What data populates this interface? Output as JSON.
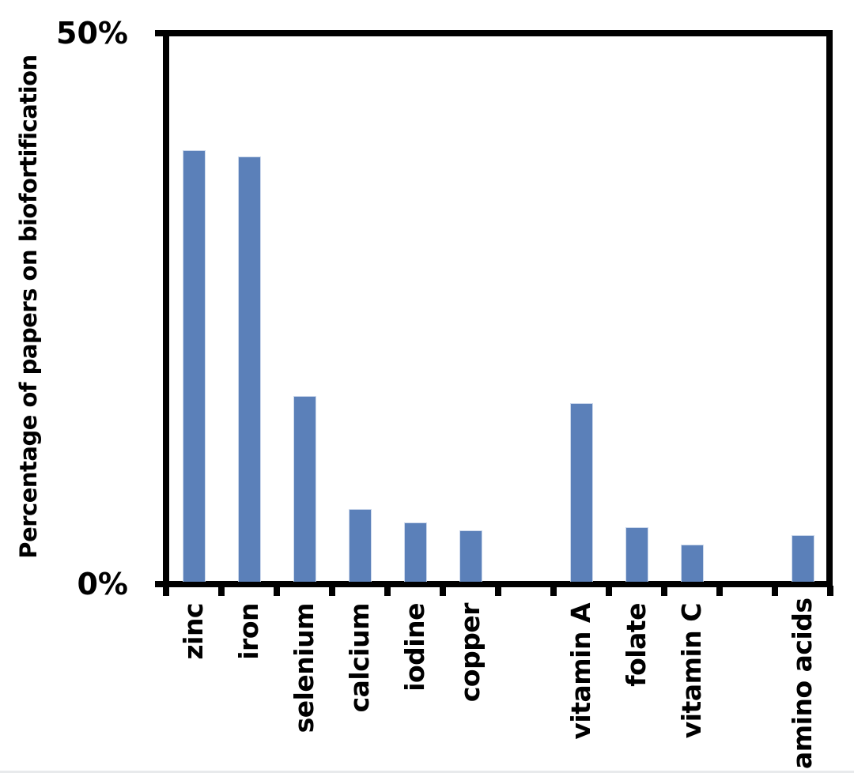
{
  "chart_data": {
    "type": "bar",
    "title": "",
    "xlabel": "",
    "ylabel": "Percentage of papers on biofortification",
    "ylim": [
      0,
      50
    ],
    "yticks": [
      {
        "value": 0,
        "label": "0%"
      },
      {
        "value": 50,
        "label": "50%"
      }
    ],
    "grid": false,
    "legend": false,
    "bar_color": "#5b80b9",
    "bar_edge_color": "#cdd9ec",
    "axis_color": "#000000",
    "background_color": "#ffffff",
    "total_slots": 12,
    "categories": [
      "zinc",
      "iron",
      "selenium",
      "calcium",
      "iodine",
      "copper",
      "vitamin A",
      "folate",
      "vitamin C",
      "amino acids"
    ],
    "values": [
      39.6,
      39.0,
      17.0,
      6.7,
      5.4,
      4.7,
      16.4,
      5.0,
      3.4,
      4.3
    ],
    "slots": [
      0,
      1,
      2,
      3,
      4,
      5,
      7,
      8,
      9,
      11
    ],
    "groups_note": "minerals group separated from vitamins group and amino acids by empty slots"
  }
}
